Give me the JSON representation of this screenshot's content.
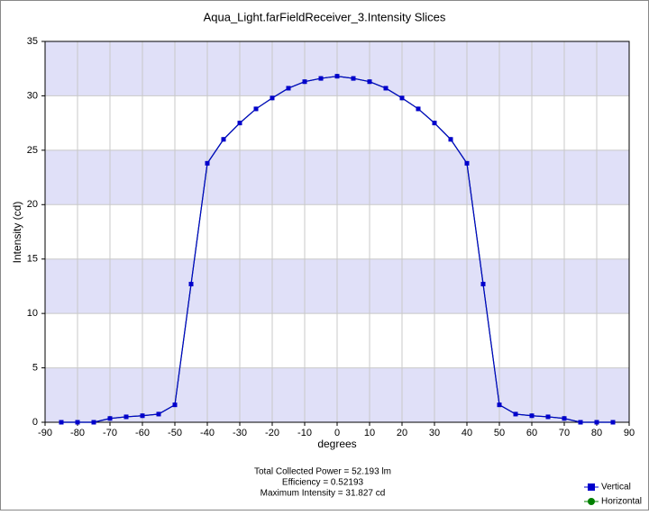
{
  "chart_data": {
    "type": "line",
    "title": "Aqua_Light.farFieldReceiver_3.Intensity Slices",
    "x_label": "degrees",
    "y_label": "Intensity (cd)",
    "annotations": [
      "Total Collected Power = 52.193  lm",
      "Efficiency = 0.52193",
      "Maximum Intensity = 31.827  cd"
    ],
    "x": [
      -85,
      -80,
      -75,
      -70,
      -65,
      -60,
      -55,
      -50,
      -45,
      -40,
      -35,
      -30,
      -25,
      -20,
      -15,
      -10,
      -5,
      0,
      5,
      10,
      15,
      20,
      25,
      30,
      35,
      40,
      45,
      50,
      55,
      60,
      65,
      70,
      75,
      80,
      85
    ],
    "series": [
      {
        "name": "Horizontal",
        "color": "#008000",
        "marker": "circle",
        "values": [
          0,
          0,
          0,
          0.35,
          0.5,
          0.6,
          0.75,
          1.6,
          12.7,
          23.8,
          26,
          27.5,
          28.8,
          29.8,
          30.7,
          31.3,
          31.6,
          31.8,
          31.6,
          31.3,
          30.7,
          29.8,
          28.8,
          27.5,
          26,
          23.8,
          12.7,
          1.6,
          0.75,
          0.6,
          0.5,
          0.35,
          0,
          0,
          0
        ]
      },
      {
        "name": "Vertical",
        "color": "#0000cc",
        "marker": "square",
        "values": [
          0,
          0,
          0,
          0.35,
          0.5,
          0.6,
          0.75,
          1.6,
          12.7,
          23.8,
          26,
          27.5,
          28.8,
          29.8,
          30.7,
          31.3,
          31.6,
          31.8,
          31.6,
          31.3,
          30.7,
          29.8,
          28.8,
          27.5,
          26,
          23.8,
          12.7,
          1.6,
          0.75,
          0.6,
          0.5,
          0.35,
          0,
          0,
          0
        ]
      }
    ],
    "xlim": [
      -90,
      90
    ],
    "xticks": [
      -90,
      -80,
      -70,
      -60,
      -50,
      -40,
      -30,
      -20,
      -10,
      0,
      10,
      20,
      30,
      40,
      50,
      60,
      70,
      80,
      90
    ],
    "ylim": [
      0,
      35
    ],
    "yticks": [
      0,
      5,
      10,
      15,
      20,
      25,
      30,
      35
    ],
    "grid": true,
    "band_color": "#e0e0f8",
    "legend_position": "bottom-right"
  }
}
